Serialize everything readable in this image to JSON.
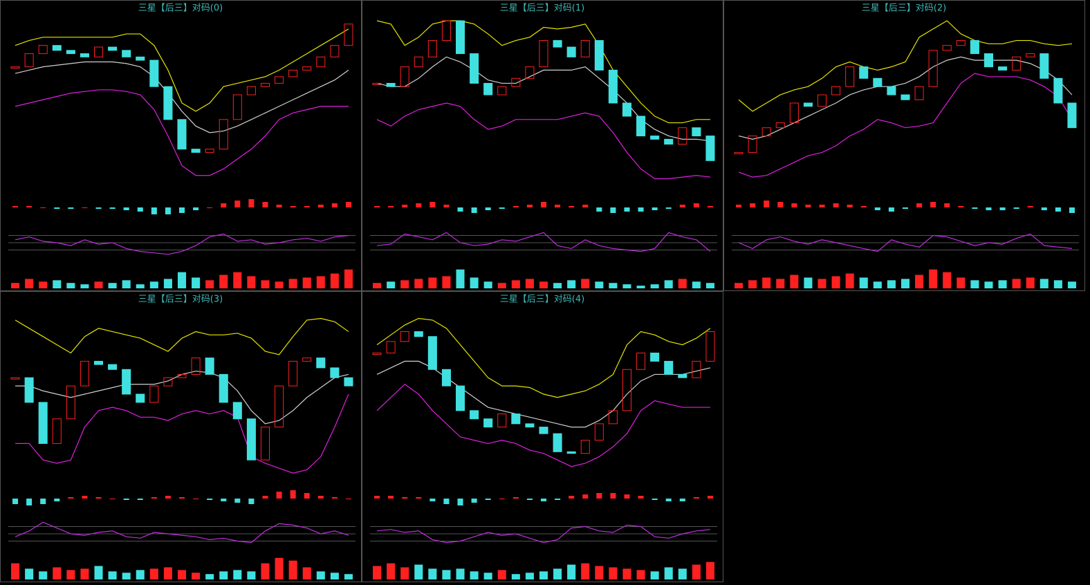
{
  "panels": [
    {
      "type": "stock",
      "title": "三星【后三】对码(0)",
      "ylim": [
        0,
        100
      ],
      "macd_lim": [
        -10,
        10
      ],
      "kdj_lim": [
        0,
        100
      ],
      "volume_lim": [
        0,
        100
      ],
      "close": [
        72,
        80,
        85,
        82,
        80,
        78,
        84,
        82,
        78,
        76,
        60,
        40,
        22,
        20,
        22,
        40,
        55,
        60,
        62,
        66,
        70,
        72,
        78,
        85,
        98
      ],
      "upper": [
        85,
        88,
        90,
        90,
        90,
        90,
        90,
        90,
        92,
        92,
        85,
        70,
        50,
        45,
        50,
        60,
        62,
        64,
        66,
        70,
        75,
        80,
        85,
        90,
        95
      ],
      "middle": [
        68,
        70,
        72,
        73,
        74,
        75,
        75,
        75,
        74,
        72,
        66,
        56,
        45,
        36,
        32,
        33,
        36,
        40,
        44,
        48,
        52,
        56,
        60,
        64,
        70
      ],
      "lower": [
        48,
        50,
        52,
        54,
        56,
        57,
        58,
        58,
        57,
        55,
        46,
        30,
        12,
        6,
        6,
        10,
        16,
        22,
        30,
        40,
        44,
        46,
        48,
        48,
        48
      ],
      "macd": [
        1,
        1,
        0,
        -1,
        -1,
        0,
        -1,
        -1,
        -2,
        -3,
        -5,
        -5,
        -4,
        -2,
        0,
        3,
        5,
        6,
        4,
        2,
        1,
        1,
        2,
        3,
        4
      ],
      "kdj": [
        60,
        70,
        55,
        50,
        40,
        60,
        45,
        50,
        30,
        20,
        15,
        10,
        20,
        40,
        70,
        80,
        55,
        60,
        45,
        50,
        60,
        65,
        55,
        70,
        75
      ],
      "volume": [
        20,
        35,
        25,
        30,
        20,
        15,
        25,
        20,
        30,
        15,
        25,
        35,
        60,
        40,
        30,
        50,
        60,
        45,
        30,
        25,
        35,
        40,
        45,
        55,
        70
      ]
    },
    {
      "type": "stock",
      "title": "三星【后三】对码(1)",
      "ylim": [
        0,
        100
      ],
      "macd_lim": [
        -10,
        10
      ],
      "kdj_lim": [
        0,
        100
      ],
      "volume_lim": [
        0,
        100
      ],
      "close": [
        62,
        60,
        72,
        78,
        88,
        100,
        80,
        62,
        55,
        60,
        65,
        72,
        88,
        84,
        78,
        88,
        70,
        50,
        42,
        30,
        28,
        25,
        35,
        30,
        15
      ],
      "upper": [
        100,
        98,
        85,
        90,
        98,
        100,
        100,
        98,
        92,
        85,
        88,
        90,
        96,
        95,
        96,
        98,
        85,
        70,
        60,
        50,
        42,
        38,
        38,
        40,
        40
      ],
      "middle": [
        62,
        60,
        60,
        65,
        72,
        78,
        75,
        70,
        64,
        62,
        62,
        66,
        70,
        70,
        70,
        72,
        65,
        58,
        50,
        40,
        34,
        30,
        28,
        28,
        27
      ],
      "lower": [
        40,
        36,
        42,
        46,
        48,
        50,
        48,
        40,
        34,
        36,
        40,
        40,
        40,
        40,
        42,
        44,
        42,
        32,
        20,
        10,
        4,
        4,
        5,
        6,
        5
      ],
      "macd": [
        1,
        1,
        2,
        3,
        4,
        2,
        -3,
        -4,
        -2,
        -1,
        1,
        2,
        4,
        2,
        1,
        2,
        -3,
        -4,
        -3,
        -3,
        -2,
        -1,
        2,
        3,
        1
      ],
      "kdj": [
        40,
        45,
        80,
        70,
        60,
        85,
        50,
        40,
        45,
        60,
        55,
        70,
        85,
        40,
        30,
        60,
        40,
        30,
        25,
        20,
        30,
        85,
        70,
        60,
        20
      ],
      "volume": [
        20,
        25,
        30,
        35,
        40,
        45,
        70,
        40,
        25,
        20,
        30,
        35,
        25,
        20,
        30,
        35,
        25,
        20,
        15,
        10,
        15,
        30,
        35,
        25,
        20
      ]
    },
    {
      "type": "stock",
      "title": "三星【后三】对码(2)",
      "ylim": [
        0,
        100
      ],
      "macd_lim": [
        -10,
        10
      ],
      "kdj_lim": [
        0,
        100
      ],
      "volume_lim": [
        0,
        100
      ],
      "close": [
        20,
        30,
        35,
        38,
        50,
        48,
        55,
        60,
        72,
        65,
        60,
        55,
        52,
        60,
        82,
        85,
        88,
        80,
        72,
        70,
        78,
        80,
        65,
        50,
        35
      ],
      "upper": [
        52,
        45,
        50,
        55,
        58,
        60,
        65,
        72,
        75,
        72,
        70,
        72,
        75,
        90,
        95,
        100,
        92,
        88,
        86,
        86,
        88,
        88,
        86,
        85,
        86
      ],
      "middle": [
        30,
        28,
        30,
        34,
        38,
        42,
        46,
        50,
        55,
        58,
        60,
        60,
        62,
        66,
        72,
        76,
        78,
        76,
        76,
        76,
        76,
        74,
        70,
        64,
        55
      ],
      "lower": [
        8,
        5,
        6,
        10,
        14,
        18,
        20,
        24,
        30,
        34,
        40,
        38,
        35,
        36,
        38,
        50,
        62,
        68,
        66,
        66,
        66,
        64,
        60,
        54,
        40
      ],
      "macd": [
        2,
        3,
        5,
        4,
        3,
        2,
        2,
        3,
        2,
        1,
        -2,
        -3,
        -1,
        3,
        4,
        3,
        1,
        -1,
        -2,
        -2,
        -1,
        1,
        -2,
        -3,
        -4
      ],
      "kdj": [
        50,
        30,
        60,
        70,
        55,
        45,
        60,
        50,
        40,
        30,
        20,
        60,
        45,
        35,
        75,
        70,
        55,
        40,
        50,
        45,
        65,
        80,
        40,
        35,
        30
      ],
      "volume": [
        20,
        30,
        40,
        35,
        50,
        40,
        35,
        45,
        55,
        40,
        25,
        30,
        35,
        50,
        70,
        60,
        40,
        30,
        25,
        30,
        35,
        40,
        35,
        30,
        25
      ]
    },
    {
      "type": "stock",
      "title": "三星【后三】对码(3)",
      "ylim": [
        0,
        100
      ],
      "macd_lim": [
        -10,
        10
      ],
      "kdj_lim": [
        0,
        100
      ],
      "volume_lim": [
        0,
        100
      ],
      "close": [
        60,
        45,
        20,
        35,
        55,
        70,
        68,
        65,
        50,
        45,
        55,
        60,
        62,
        72,
        62,
        45,
        35,
        10,
        30,
        55,
        70,
        72,
        66,
        60,
        55
      ],
      "upper": [
        95,
        90,
        85,
        80,
        75,
        85,
        90,
        88,
        86,
        84,
        80,
        76,
        84,
        88,
        86,
        86,
        87,
        84,
        76,
        74,
        85,
        95,
        96,
        94,
        88
      ],
      "middle": [
        55,
        55,
        52,
        50,
        48,
        50,
        52,
        54,
        56,
        56,
        56,
        58,
        62,
        64,
        63,
        60,
        52,
        40,
        32,
        34,
        40,
        48,
        54,
        60,
        62
      ],
      "lower": [
        20,
        20,
        10,
        8,
        10,
        30,
        40,
        42,
        40,
        36,
        36,
        34,
        38,
        40,
        38,
        40,
        36,
        12,
        8,
        5,
        2,
        4,
        12,
        30,
        50
      ],
      "macd": [
        -4,
        -5,
        -4,
        -2,
        1,
        2,
        1,
        0,
        -1,
        -1,
        1,
        2,
        1,
        0,
        -1,
        -2,
        -3,
        -4,
        2,
        5,
        6,
        4,
        2,
        1,
        0
      ],
      "kdj": [
        40,
        60,
        90,
        70,
        50,
        45,
        55,
        60,
        40,
        35,
        55,
        50,
        45,
        40,
        30,
        35,
        25,
        20,
        60,
        85,
        80,
        70,
        50,
        60,
        45
      ],
      "volume": [
        60,
        40,
        30,
        45,
        35,
        40,
        50,
        30,
        25,
        35,
        40,
        45,
        35,
        25,
        20,
        30,
        35,
        30,
        60,
        80,
        70,
        45,
        30,
        25,
        20
      ]
    },
    {
      "type": "stock",
      "title": "三星【后三】对码(4)",
      "ylim": [
        0,
        100
      ],
      "macd_lim": [
        -10,
        10
      ],
      "kdj_lim": [
        0,
        100
      ],
      "volume_lim": [
        0,
        100
      ],
      "close": [
        75,
        82,
        88,
        85,
        65,
        55,
        40,
        35,
        30,
        38,
        32,
        30,
        26,
        15,
        14,
        22,
        32,
        40,
        65,
        75,
        70,
        62,
        60,
        70,
        88
      ],
      "upper": [
        80,
        86,
        92,
        96,
        95,
        90,
        80,
        70,
        60,
        55,
        55,
        54,
        50,
        48,
        50,
        52,
        56,
        62,
        80,
        88,
        86,
        82,
        80,
        84,
        90
      ],
      "middle": [
        62,
        66,
        70,
        70,
        66,
        60,
        54,
        48,
        42,
        40,
        38,
        36,
        34,
        32,
        30,
        30,
        34,
        40,
        50,
        58,
        62,
        62,
        62,
        64,
        66
      ],
      "lower": [
        40,
        48,
        56,
        50,
        40,
        32,
        24,
        22,
        20,
        22,
        20,
        16,
        14,
        10,
        6,
        8,
        12,
        18,
        26,
        40,
        46,
        44,
        42,
        42,
        42
      ],
      "macd": [
        2,
        2,
        1,
        1,
        -2,
        -4,
        -5,
        -3,
        -1,
        0,
        1,
        -1,
        -2,
        -1,
        2,
        3,
        4,
        4,
        3,
        2,
        -1,
        -2,
        -2,
        1,
        2
      ],
      "kdj": [
        60,
        65,
        55,
        60,
        30,
        20,
        25,
        40,
        55,
        45,
        50,
        35,
        20,
        30,
        70,
        75,
        60,
        55,
        80,
        75,
        40,
        35,
        50,
        60,
        65
      ],
      "volume": [
        50,
        60,
        45,
        55,
        40,
        35,
        40,
        30,
        25,
        35,
        20,
        25,
        30,
        40,
        55,
        60,
        50,
        45,
        40,
        35,
        30,
        45,
        40,
        55,
        65
      ]
    }
  ],
  "colors": {
    "upper": "#e6e600",
    "middle": "#d0d0d0",
    "lower": "#e020e0",
    "up": "#ff2020",
    "down": "#40e0e0",
    "kdj": "#c030e0"
  }
}
